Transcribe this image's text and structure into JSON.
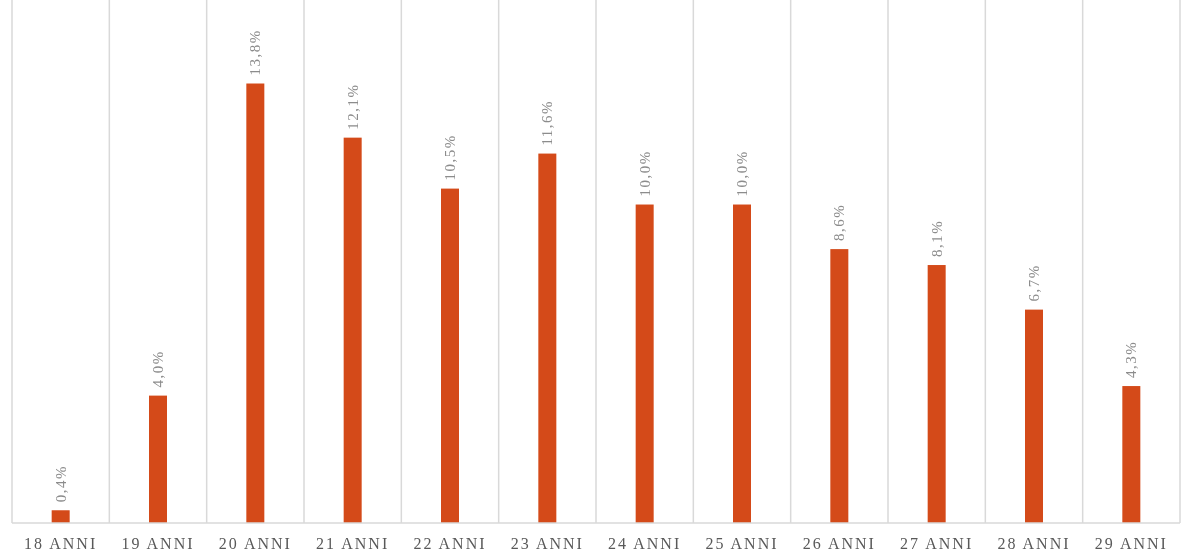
{
  "chart_data": {
    "type": "bar",
    "categories": [
      "18 ANNI",
      "19 ANNI",
      "20 ANNI",
      "21 ANNI",
      "22 ANNI",
      "23 ANNI",
      "24 ANNI",
      "25 ANNI",
      "26 ANNI",
      "27 ANNI",
      "28 ANNI",
      "29 ANNI"
    ],
    "values": [
      0.4,
      4.0,
      13.8,
      12.1,
      10.5,
      11.6,
      10.0,
      10.0,
      8.6,
      8.1,
      6.7,
      4.3
    ],
    "value_labels": [
      "0,4%",
      "4,0%",
      "13,8%",
      "12,1%",
      "10,5%",
      "11,6%",
      "10,0%",
      "10,0%",
      "8,6%",
      "8,1%",
      "6,7%",
      "4,3%"
    ],
    "color": "#d44a19",
    "grid": "x"
  }
}
